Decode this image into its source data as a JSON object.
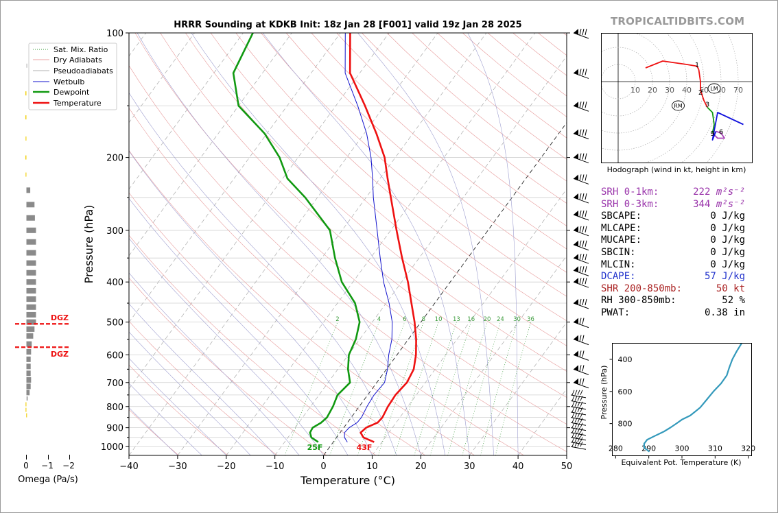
{
  "brand": "TROPICALTIDBITS.COM",
  "skewt": {
    "title": "HRRR Sounding at KDKB Init: 18z Jan 28 [F001] valid 19z Jan 28 2025",
    "xlabel": "Temperature (°C)",
    "ylabel": "Pressure (hPa)",
    "xticks": [
      "−40",
      "−30",
      "−20",
      "−10",
      "0",
      "10",
      "20",
      "30",
      "40",
      "50"
    ],
    "yticks": [
      "100",
      "200",
      "300",
      "400",
      "500",
      "600",
      "700",
      "800",
      "900",
      "1000"
    ],
    "legend": [
      "Sat. Mix. Ratio",
      "Dry Adiabats",
      "Pseudoadiabats",
      "Wetbulb",
      "Dewpoint",
      "Temperature"
    ],
    "mixing_ratio_labels": [
      "2",
      "4",
      "6",
      "8",
      "10",
      "13",
      "16",
      "20",
      "24",
      "30",
      "36"
    ],
    "surface_dewpoint_label": "25F",
    "surface_temp_label": "43F"
  },
  "omega": {
    "xlabel": "Omega (Pa/s)",
    "xticks": [
      "0",
      "−1",
      "−2"
    ],
    "dgz_label": "DGZ"
  },
  "hodograph": {
    "caption": "Hodograph (wind in kt, height in km)",
    "ring_labels": [
      "10",
      "20",
      "30",
      "40",
      "50",
      "60",
      "70"
    ],
    "height_labels": [
      "1",
      "2",
      "3",
      "6",
      "9"
    ],
    "markers": [
      "LM",
      "RM"
    ]
  },
  "stats": [
    {
      "label": "SRH 0-1km:",
      "value": "222",
      "unit": "m²s⁻²",
      "color": "purple"
    },
    {
      "label": "SRH 0-3km:",
      "value": "344",
      "unit": "m²s⁻²",
      "color": "purple"
    },
    {
      "label": "SBCAPE:",
      "value": "0",
      "unit": "J/kg",
      "color": "black"
    },
    {
      "label": "MLCAPE:",
      "value": "0",
      "unit": "J/kg",
      "color": "black"
    },
    {
      "label": "MUCAPE:",
      "value": "0",
      "unit": "J/kg",
      "color": "black"
    },
    {
      "label": "SBCIN:",
      "value": "0",
      "unit": "J/kg",
      "color": "black"
    },
    {
      "label": "MLCIN:",
      "value": "0",
      "unit": "J/kg",
      "color": "black"
    },
    {
      "label": "DCAPE:",
      "value": "57",
      "unit": "J/kg",
      "color": "blue"
    },
    {
      "label": "SHR 200-850mb:",
      "value": "50",
      "unit": "kt",
      "color": "brown"
    },
    {
      "label": "RH 300-850mb:",
      "value": "52",
      "unit": "%",
      "color": "black"
    },
    {
      "label": "PWAT:",
      "value": "0.38",
      "unit": "in",
      "color": "black"
    }
  ],
  "theta_e": {
    "ylabel": "Pressure (hPa)",
    "xlabel": "Equivalent Pot. Temperature (K)",
    "xticks": [
      "280",
      "290",
      "300",
      "310",
      "320"
    ],
    "yticks": [
      "400",
      "600",
      "800"
    ]
  },
  "chart_data": [
    {
      "type": "line",
      "title": "HRRR Sounding at KDKB Init: 18z Jan 28 [F001] valid 19z Jan 28 2025",
      "xlabel": "Temperature (°C)",
      "ylabel": "Pressure (hPa)",
      "xlim": [
        -40,
        50
      ],
      "ylim": [
        1050,
        100
      ],
      "y_scale": "log",
      "series": [
        {
          "name": "Temperature",
          "color": "#ee1111",
          "p": [
            975,
            950,
            925,
            900,
            875,
            850,
            800,
            750,
            700,
            650,
            600,
            550,
            500,
            450,
            400,
            350,
            300,
            250,
            225,
            200,
            175,
            150,
            125,
            100
          ],
          "t": [
            8.4,
            5.5,
            4.2,
            4.6,
            6.2,
            6.4,
            5.9,
            5.7,
            6.2,
            5.6,
            3.9,
            1.6,
            -1.3,
            -4.8,
            -8.7,
            -13.5,
            -18.8,
            -24.9,
            -28.4,
            -32.2,
            -37.5,
            -44.0,
            -52.0,
            -58.0
          ]
        },
        {
          "name": "Dewpoint",
          "color": "#119911",
          "p": [
            975,
            950,
            925,
            900,
            875,
            850,
            800,
            750,
            700,
            650,
            600,
            550,
            500,
            450,
            400,
            350,
            300,
            250,
            225,
            200,
            175,
            150,
            125,
            100
          ],
          "t": [
            -3.1,
            -5.2,
            -6.2,
            -6.4,
            -5.4,
            -5.0,
            -5.4,
            -6.2,
            -5.5,
            -7.9,
            -9.9,
            -10.8,
            -12.6,
            -16.4,
            -22.3,
            -27.3,
            -32.5,
            -42.5,
            -49.0,
            -53.8,
            -60.5,
            -70.0,
            -76.0,
            -78.0
          ]
        },
        {
          "name": "Wetbulb",
          "color": "#1111cc",
          "p": [
            975,
            950,
            925,
            900,
            875,
            850,
            800,
            750,
            700,
            650,
            600,
            550,
            500,
            450,
            400,
            350,
            300,
            250,
            225,
            200,
            175,
            150,
            125,
            100
          ],
          "t": [
            2.9,
            1.6,
            0.9,
            1.1,
            2.0,
            2.1,
            1.6,
            1.3,
            1.6,
            0.2,
            -1.7,
            -3.4,
            -5.9,
            -9.4,
            -13.7,
            -18.0,
            -22.8,
            -28.5,
            -31.5,
            -35.0,
            -39.5,
            -45.5,
            -53.0,
            -59.0
          ]
        }
      ]
    },
    {
      "type": "bar",
      "title": "",
      "xlabel": "Omega (Pa/s)",
      "xlim": [
        0.3,
        -2.3
      ],
      "p": [
        840,
        815,
        790,
        765,
        740,
        715,
        690,
        665,
        640,
        615,
        590,
        565,
        540,
        520,
        500,
        480,
        460,
        440,
        420,
        400,
        380,
        360,
        340,
        320,
        300,
        280,
        260,
        240,
        220,
        200,
        180,
        160,
        140,
        120
      ],
      "values": [
        0.01,
        0.04,
        0.04,
        -0.08,
        -0.15,
        -0.2,
        -0.22,
        -0.2,
        -0.2,
        -0.2,
        -0.22,
        -0.25,
        -0.32,
        -0.38,
        -0.45,
        -0.45,
        -0.45,
        -0.45,
        -0.45,
        -0.45,
        -0.45,
        -0.45,
        -0.45,
        -0.45,
        -0.45,
        -0.4,
        -0.38,
        -0.18,
        0.04,
        0.05,
        0.04,
        0.05,
        0.05,
        -0.02
      ],
      "dgz_hpa": [
        505,
        575
      ],
      "dgz_label": "DGZ"
    },
    {
      "type": "line",
      "title": "Hodograph (wind in kt, height in km)",
      "xlim": [
        -10,
        78
      ],
      "ylim": [
        -45,
        28
      ],
      "series": [
        {
          "name": "0-1 km",
          "color": "#ee1111",
          "u": [
            16,
            26,
            40,
            46,
            47
          ],
          "v": [
            8,
            12,
            10,
            9,
            7
          ]
        },
        {
          "name": "1-3 km",
          "color": "#ee1111",
          "u": [
            47,
            48,
            48,
            50,
            52
          ],
          "v": [
            7,
            0,
            -5,
            -11,
            -15
          ]
        },
        {
          "name": "3-6 km",
          "color": "#119911",
          "u": [
            52,
            55,
            56,
            55
          ],
          "v": [
            -15,
            -18,
            -25,
            -30
          ]
        },
        {
          "name": "6-9 km",
          "color": "#aa44bb",
          "u": [
            55,
            58,
            62,
            60,
            57
          ],
          "v": [
            -30,
            -33,
            -33,
            -30,
            -29
          ]
        },
        {
          "name": "9+ km",
          "color": "#1111dd",
          "u": [
            57,
            55,
            58,
            73
          ],
          "v": [
            -29,
            -34,
            -18,
            -25
          ]
        }
      ],
      "lm": [
        56,
        -4
      ],
      "rm": [
        35,
        -14
      ]
    },
    {
      "type": "line",
      "title": "",
      "xlabel": "Equivalent Pot. Temperature (K)",
      "ylabel": "Pressure (hPa)",
      "xlim": [
        279,
        321
      ],
      "ylim": [
        1000,
        300
      ],
      "series": [
        {
          "name": "",
          "color": "#3399bb",
          "p": [
            975,
            950,
            925,
            900,
            875,
            850,
            825,
            800,
            775,
            750,
            725,
            700,
            650,
            600,
            550,
            500,
            450,
            400,
            350,
            300
          ],
          "theta_e": [
            290.2,
            288.6,
            288.6,
            289.5,
            292,
            294.5,
            296.5,
            298.3,
            300,
            302.5,
            304,
            305.5,
            307.5,
            309.5,
            311.8,
            313.5,
            314.3,
            315.2,
            316.5,
            318
          ]
        }
      ]
    }
  ]
}
